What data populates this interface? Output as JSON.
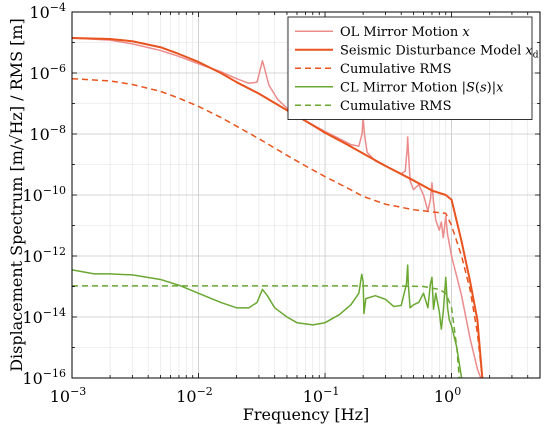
{
  "chart_data": {
    "type": "line",
    "xscale": "log",
    "yscale": "log",
    "xlim": [
      0.001,
      5
    ],
    "ylim": [
      1e-16,
      0.0001
    ],
    "grid": true,
    "minor_grid": true,
    "legend_position": "top-right",
    "xlabel": "Frequency [Hz]",
    "ylabel": "Displacement Spectrum [m/√Hz] / RMS [m]",
    "x_ticks": [
      {
        "value": 0.001,
        "base": "10",
        "exp": "−3"
      },
      {
        "value": 0.01,
        "base": "10",
        "exp": "−2"
      },
      {
        "value": 0.1,
        "base": "10",
        "exp": "−1"
      },
      {
        "value": 1,
        "base": "10",
        "exp": "0"
      }
    ],
    "y_ticks": [
      {
        "value": 1e-16,
        "base": "10",
        "exp": "−16"
      },
      {
        "value": 1e-14,
        "base": "10",
        "exp": "−14"
      },
      {
        "value": 1e-12,
        "base": "10",
        "exp": "−12"
      },
      {
        "value": 1e-10,
        "base": "10",
        "exp": "−10"
      },
      {
        "value": 1e-08,
        "base": "10",
        "exp": "−8"
      },
      {
        "value": 1e-06,
        "base": "10",
        "exp": "−6"
      },
      {
        "value": 0.0001,
        "base": "10",
        "exp": "−4"
      }
    ],
    "series": [
      {
        "name": "OL Mirror Motion x",
        "legend_html": "OL Mirror Motion <tspan font-style=\"italic\">x</tspan>",
        "color": "#ec8b8b",
        "dash": "",
        "width": 1.5,
        "points": [
          [
            0.001,
            1.4e-05
          ],
          [
            0.002,
            1.2e-05
          ],
          [
            0.003,
            9e-06
          ],
          [
            0.005,
            5.5e-06
          ],
          [
            0.007,
            3.5e-06
          ],
          [
            0.01,
            2e-06
          ],
          [
            0.015,
            1.1e-06
          ],
          [
            0.02,
            6.5e-07
          ],
          [
            0.025,
            4.6e-07
          ],
          [
            0.029,
            5e-07
          ],
          [
            0.031,
            1.5e-06
          ],
          [
            0.032,
            2.5e-06
          ],
          [
            0.033,
            1.6e-06
          ],
          [
            0.036,
            4e-07
          ],
          [
            0.042,
            1.4e-07
          ],
          [
            0.05,
            7e-08
          ],
          [
            0.065,
            3.2e-08
          ],
          [
            0.08,
            2e-08
          ],
          [
            0.1,
            1.2e-08
          ],
          [
            0.13,
            7e-09
          ],
          [
            0.16,
            4.5e-09
          ],
          [
            0.185,
            4e-09
          ],
          [
            0.196,
            1e-08
          ],
          [
            0.2,
            3.5e-08
          ],
          [
            0.205,
            1e-08
          ],
          [
            0.215,
            2.5e-09
          ],
          [
            0.25,
            1.3e-09
          ],
          [
            0.3,
            9e-10
          ],
          [
            0.35,
            6.5e-10
          ],
          [
            0.4,
            5e-10
          ],
          [
            0.43,
            6e-10
          ],
          [
            0.445,
            3e-09
          ],
          [
            0.45,
            8e-09
          ],
          [
            0.455,
            3e-09
          ],
          [
            0.47,
            3e-10
          ],
          [
            0.5,
            1.5e-10
          ],
          [
            0.55,
            2.2e-10
          ],
          [
            0.6,
            1e-10
          ],
          [
            0.65,
            3e-11
          ],
          [
            0.68,
            7e-11
          ],
          [
            0.7,
            2.5e-10
          ],
          [
            0.72,
            6e-11
          ],
          [
            0.75,
            1.5e-11
          ],
          [
            0.8,
            7e-12
          ],
          [
            0.83,
            1.3e-11
          ],
          [
            0.86,
            4e-12
          ],
          [
            0.9,
            2e-11
          ],
          [
            0.93,
            5e-12
          ],
          [
            1.0,
            1e-12
          ],
          [
            1.2,
            5e-14
          ],
          [
            1.4,
            2e-15
          ],
          [
            1.6,
            2e-16
          ],
          [
            1.7,
            1e-16
          ]
        ]
      },
      {
        "name": "Seismic Disturbance Model x_d",
        "legend_html": "Seismic Disturbance Model <tspan font-style=\"italic\">x</tspan><tspan font-size=\"9\" dy=\"3\">d</tspan>",
        "color": "#e8531e",
        "dash": "",
        "width": 2,
        "points": [
          [
            0.001,
            1.4e-05
          ],
          [
            0.002,
            1.3e-05
          ],
          [
            0.003,
            1.1e-05
          ],
          [
            0.005,
            7e-06
          ],
          [
            0.007,
            4.2e-06
          ],
          [
            0.01,
            2.3e-06
          ],
          [
            0.015,
            1e-06
          ],
          [
            0.02,
            5e-07
          ],
          [
            0.03,
            2.1e-07
          ],
          [
            0.05,
            6e-08
          ],
          [
            0.07,
            2.7e-08
          ],
          [
            0.1,
            1.1e-08
          ],
          [
            0.15,
            4.5e-09
          ],
          [
            0.2,
            2.3e-09
          ],
          [
            0.3,
            9e-10
          ],
          [
            0.5,
            3e-10
          ],
          [
            0.7,
            1.4e-10
          ],
          [
            0.9,
            1e-10
          ],
          [
            1.0,
            7e-11
          ],
          [
            1.2,
            3e-12
          ],
          [
            1.4,
            1.5e-13
          ],
          [
            1.6,
            8e-15
          ],
          [
            1.75,
            1e-16
          ]
        ]
      },
      {
        "name": "Cumulative RMS",
        "legend_html": "Cumulative RMS",
        "color": "#e8531e",
        "dash": "6,4",
        "width": 1.5,
        "points": [
          [
            0.001,
            6.5e-07
          ],
          [
            0.002,
            5.5e-07
          ],
          [
            0.003,
            4.2e-07
          ],
          [
            0.005,
            2.5e-07
          ],
          [
            0.007,
            1.5e-07
          ],
          [
            0.01,
            8e-08
          ],
          [
            0.015,
            3.5e-08
          ],
          [
            0.02,
            1.8e-08
          ],
          [
            0.03,
            7e-09
          ],
          [
            0.05,
            2e-09
          ],
          [
            0.07,
            9e-10
          ],
          [
            0.1,
            4e-10
          ],
          [
            0.15,
            1.7e-10
          ],
          [
            0.2,
            9e-11
          ],
          [
            0.3,
            5e-11
          ],
          [
            0.5,
            3.3e-11
          ],
          [
            0.7,
            2.8e-11
          ],
          [
            0.9,
            2.5e-11
          ],
          [
            1.0,
            1e-11
          ],
          [
            1.2,
            1e-12
          ],
          [
            1.4,
            8e-14
          ],
          [
            1.6,
            3e-15
          ],
          [
            1.75,
            1e-16
          ]
        ]
      },
      {
        "name": "CL Mirror Motion |S(s)|x",
        "legend_html": "CL Mirror Motion |<tspan font-style=\"italic\">S</tspan>(<tspan font-style=\"italic\">s</tspan>)|<tspan font-style=\"italic\">x</tspan>",
        "color": "#6aa832",
        "dash": "",
        "width": 1.5,
        "points": [
          [
            0.001,
            3.5e-13
          ],
          [
            0.0015,
            2.6e-13
          ],
          [
            0.002,
            2.6e-13
          ],
          [
            0.003,
            2.4e-13
          ],
          [
            0.005,
            1.7e-13
          ],
          [
            0.007,
            1.1e-13
          ],
          [
            0.01,
            6e-14
          ],
          [
            0.015,
            3e-14
          ],
          [
            0.02,
            2e-14
          ],
          [
            0.025,
            2e-14
          ],
          [
            0.029,
            3e-14
          ],
          [
            0.032,
            8e-14
          ],
          [
            0.035,
            5e-14
          ],
          [
            0.04,
            2e-14
          ],
          [
            0.05,
            1e-14
          ],
          [
            0.06,
            6.5e-15
          ],
          [
            0.08,
            5.5e-15
          ],
          [
            0.1,
            6.5e-15
          ],
          [
            0.13,
            1.2e-14
          ],
          [
            0.16,
            2.5e-14
          ],
          [
            0.185,
            6e-14
          ],
          [
            0.195,
            2.5e-13
          ],
          [
            0.2,
            1.5e-13
          ],
          [
            0.203,
            1.3e-14
          ],
          [
            0.21,
            4e-14
          ],
          [
            0.25,
            5e-14
          ],
          [
            0.3,
            3.8e-14
          ],
          [
            0.35,
            2.2e-14
          ],
          [
            0.4,
            2.4e-14
          ],
          [
            0.44,
            1.2e-13
          ],
          [
            0.45,
            5e-13
          ],
          [
            0.455,
            1.2e-13
          ],
          [
            0.47,
            2e-14
          ],
          [
            0.5,
            2.5e-14
          ],
          [
            0.55,
            3e-14
          ],
          [
            0.6,
            6e-14
          ],
          [
            0.65,
            2e-14
          ],
          [
            0.68,
            1.2e-13
          ],
          [
            0.7,
            2e-13
          ],
          [
            0.72,
            1.8e-14
          ],
          [
            0.75,
            6e-14
          ],
          [
            0.8,
            1.5e-14
          ],
          [
            0.83,
            4e-15
          ],
          [
            0.86,
            1.5e-14
          ],
          [
            0.9,
            2e-13
          ],
          [
            0.93,
            2e-14
          ],
          [
            0.96,
            8e-15
          ],
          [
            1.0,
            5e-15
          ],
          [
            1.1,
            1e-15
          ],
          [
            1.2,
            1e-16
          ]
        ]
      },
      {
        "name": "Cumulative RMS",
        "legend_html": "Cumulative RMS",
        "color": "#6aa832",
        "dash": "6,4",
        "width": 1.5,
        "points": [
          [
            0.001,
            1.05e-13
          ],
          [
            0.005,
            1.05e-13
          ],
          [
            0.01,
            1.05e-13
          ],
          [
            0.05,
            1.05e-13
          ],
          [
            0.1,
            1.05e-13
          ],
          [
            0.2,
            1.05e-13
          ],
          [
            0.4,
            1.03e-13
          ],
          [
            0.6,
            1e-13
          ],
          [
            0.8,
            8e-14
          ],
          [
            0.9,
            6e-14
          ],
          [
            1.0,
            2e-14
          ],
          [
            1.1,
            1e-15
          ],
          [
            1.15,
            1e-16
          ]
        ]
      }
    ]
  }
}
